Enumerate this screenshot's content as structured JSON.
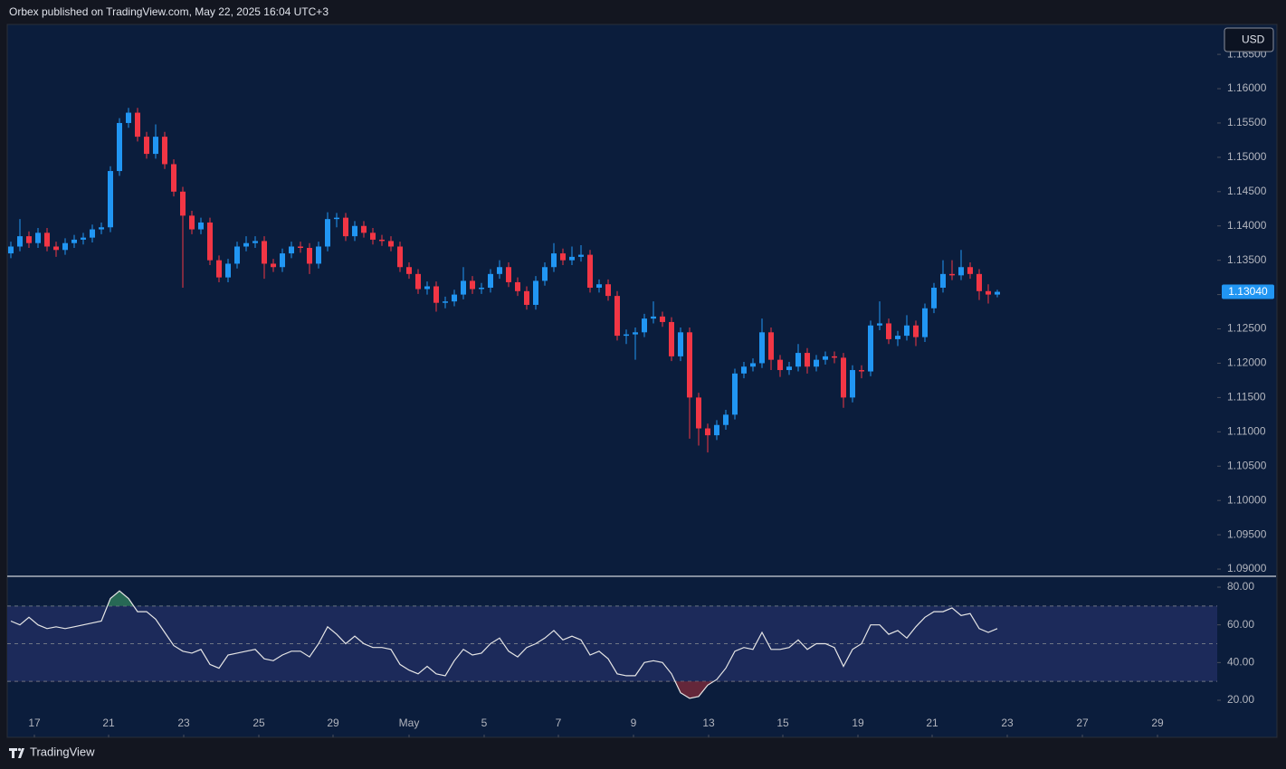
{
  "header": {
    "text": "Orbex published on TradingView.com, May 22, 2025 16:04 UTC+3"
  },
  "footer": {
    "brand": "TradingView"
  },
  "currency_button": {
    "label": "USD"
  },
  "chart_data": [
    {
      "type": "candlestick",
      "up_color": "#2196f3",
      "down_color": "#f23645",
      "xlim": [
        -0.4,
        133.3
      ],
      "ylim": [
        1.08895,
        1.16923
      ],
      "yticks": [
        {
          "value": 1.09,
          "label": "1.09000"
        },
        {
          "value": 1.095,
          "label": "1.09500"
        },
        {
          "value": 1.1,
          "label": "1.10000"
        },
        {
          "value": 1.105,
          "label": "1.10500"
        },
        {
          "value": 1.11,
          "label": "1.11000"
        },
        {
          "value": 1.115,
          "label": "1.11500"
        },
        {
          "value": 1.12,
          "label": "1.12000"
        },
        {
          "value": 1.125,
          "label": "1.12500"
        },
        {
          "value": 1.13,
          "label": "1.13000"
        },
        {
          "value": 1.135,
          "label": "1.13500"
        },
        {
          "value": 1.14,
          "label": "1.14000"
        },
        {
          "value": 1.145,
          "label": "1.14500"
        },
        {
          "value": 1.15,
          "label": "1.15000"
        },
        {
          "value": 1.155,
          "label": "1.15500"
        },
        {
          "value": 1.16,
          "label": "1.16000"
        },
        {
          "value": 1.165,
          "label": "1.16500"
        }
      ],
      "grid": false,
      "last_price": {
        "value": 1.1304,
        "label": "1.13040"
      },
      "ohlc": [
        [
          1.136,
          1.1377,
          1.1353,
          1.137
        ],
        [
          1.137,
          1.141,
          1.1363,
          1.1385
        ],
        [
          1.1385,
          1.1392,
          1.1368,
          1.1375
        ],
        [
          1.1375,
          1.1397,
          1.1368,
          1.139
        ],
        [
          1.139,
          1.1397,
          1.1363,
          1.137
        ],
        [
          1.137,
          1.1377,
          1.1355,
          1.1365
        ],
        [
          1.1365,
          1.1382,
          1.1358,
          1.1375
        ],
        [
          1.1375,
          1.1387,
          1.1368,
          1.138
        ],
        [
          1.138,
          1.139,
          1.1373,
          1.1383
        ],
        [
          1.1383,
          1.1402,
          1.1376,
          1.1395
        ],
        [
          1.1395,
          1.1405,
          1.1388,
          1.1398
        ],
        [
          1.1398,
          1.1487,
          1.1391,
          1.148
        ],
        [
          1.148,
          1.1557,
          1.1473,
          1.155
        ],
        [
          1.155,
          1.1572,
          1.1543,
          1.1565
        ],
        [
          1.1565,
          1.1572,
          1.1523,
          1.153
        ],
        [
          1.153,
          1.1537,
          1.1498,
          1.1505
        ],
        [
          1.1505,
          1.1548,
          1.1498,
          1.153
        ],
        [
          1.153,
          1.1537,
          1.1483,
          1.149
        ],
        [
          1.149,
          1.1497,
          1.1443,
          1.145
        ],
        [
          1.145,
          1.1457,
          1.131,
          1.1415
        ],
        [
          1.1415,
          1.1422,
          1.1388,
          1.1395
        ],
        [
          1.1395,
          1.1412,
          1.1388,
          1.1405
        ],
        [
          1.1405,
          1.1412,
          1.1343,
          1.135
        ],
        [
          1.135,
          1.1357,
          1.1318,
          1.1325
        ],
        [
          1.1325,
          1.1352,
          1.1318,
          1.1345
        ],
        [
          1.1345,
          1.1377,
          1.1338,
          1.137
        ],
        [
          1.137,
          1.1385,
          1.1363,
          1.1375
        ],
        [
          1.1375,
          1.1385,
          1.1368,
          1.1378
        ],
        [
          1.1378,
          1.1385,
          1.1323,
          1.1345
        ],
        [
          1.1345,
          1.1352,
          1.1333,
          1.134
        ],
        [
          1.134,
          1.1367,
          1.1333,
          1.136
        ],
        [
          1.136,
          1.1377,
          1.1353,
          1.137
        ],
        [
          1.137,
          1.1377,
          1.1361,
          1.1368
        ],
        [
          1.1368,
          1.1375,
          1.133,
          1.1345
        ],
        [
          1.1345,
          1.1377,
          1.1338,
          1.137
        ],
        [
          1.137,
          1.142,
          1.1363,
          1.141
        ],
        [
          1.141,
          1.1419,
          1.1398,
          1.1412
        ],
        [
          1.1412,
          1.1419,
          1.1378,
          1.1385
        ],
        [
          1.1385,
          1.1407,
          1.1378,
          1.14
        ],
        [
          1.14,
          1.1407,
          1.1383,
          1.139
        ],
        [
          1.139,
          1.1397,
          1.1373,
          1.138
        ],
        [
          1.138,
          1.1387,
          1.1371,
          1.1378
        ],
        [
          1.1378,
          1.1385,
          1.1363,
          1.137
        ],
        [
          1.137,
          1.1377,
          1.1333,
          1.134
        ],
        [
          1.134,
          1.1347,
          1.1323,
          1.133
        ],
        [
          1.133,
          1.1337,
          1.1301,
          1.1308
        ],
        [
          1.1308,
          1.1319,
          1.13,
          1.1312
        ],
        [
          1.1312,
          1.1319,
          1.1275,
          1.1288
        ],
        [
          1.1288,
          1.1297,
          1.128,
          1.129
        ],
        [
          1.129,
          1.1307,
          1.1283,
          1.13
        ],
        [
          1.13,
          1.134,
          1.1293,
          1.132
        ],
        [
          1.132,
          1.1327,
          1.1301,
          1.1308
        ],
        [
          1.1308,
          1.1317,
          1.1301,
          1.131
        ],
        [
          1.131,
          1.1337,
          1.1303,
          1.133
        ],
        [
          1.133,
          1.135,
          1.1323,
          1.134
        ],
        [
          1.134,
          1.1347,
          1.1311,
          1.1318
        ],
        [
          1.1318,
          1.1325,
          1.1298,
          1.1305
        ],
        [
          1.1305,
          1.1312,
          1.1278,
          1.1285
        ],
        [
          1.1285,
          1.1327,
          1.1278,
          1.132
        ],
        [
          1.132,
          1.1347,
          1.1313,
          1.134
        ],
        [
          1.134,
          1.1375,
          1.1333,
          1.136
        ],
        [
          1.136,
          1.1367,
          1.1343,
          1.135
        ],
        [
          1.135,
          1.137,
          1.1343,
          1.1355
        ],
        [
          1.1355,
          1.1372,
          1.1348,
          1.1358
        ],
        [
          1.1358,
          1.1365,
          1.1303,
          1.131
        ],
        [
          1.131,
          1.1322,
          1.1303,
          1.1315
        ],
        [
          1.1315,
          1.1322,
          1.1291,
          1.1298
        ],
        [
          1.1298,
          1.1305,
          1.1233,
          1.124
        ],
        [
          1.124,
          1.1249,
          1.1228,
          1.1242
        ],
        [
          1.1242,
          1.1252,
          1.1205,
          1.1245
        ],
        [
          1.1245,
          1.1272,
          1.1238,
          1.1265
        ],
        [
          1.1265,
          1.129,
          1.1258,
          1.1268
        ],
        [
          1.1268,
          1.1275,
          1.1253,
          1.126
        ],
        [
          1.126,
          1.1267,
          1.1203,
          1.121
        ],
        [
          1.121,
          1.1252,
          1.1203,
          1.1245
        ],
        [
          1.1245,
          1.1252,
          1.109,
          1.115
        ],
        [
          1.115,
          1.1157,
          1.108,
          1.1105
        ],
        [
          1.1105,
          1.1112,
          1.107,
          1.1095
        ],
        [
          1.1095,
          1.1117,
          1.1088,
          1.111
        ],
        [
          1.111,
          1.1132,
          1.1103,
          1.1125
        ],
        [
          1.1125,
          1.1192,
          1.1118,
          1.1185
        ],
        [
          1.1185,
          1.1202,
          1.1178,
          1.1195
        ],
        [
          1.1195,
          1.1207,
          1.1188,
          1.12
        ],
        [
          1.12,
          1.1265,
          1.1193,
          1.1245
        ],
        [
          1.1245,
          1.1252,
          1.119,
          1.1205
        ],
        [
          1.1205,
          1.1212,
          1.118,
          1.119
        ],
        [
          1.119,
          1.1202,
          1.1183,
          1.1195
        ],
        [
          1.1195,
          1.1228,
          1.1188,
          1.1215
        ],
        [
          1.1215,
          1.1222,
          1.1185,
          1.1195
        ],
        [
          1.1195,
          1.1212,
          1.1188,
          1.1205
        ],
        [
          1.1205,
          1.1217,
          1.1198,
          1.121
        ],
        [
          1.121,
          1.1217,
          1.12,
          1.1208
        ],
        [
          1.1208,
          1.1215,
          1.1135,
          1.115
        ],
        [
          1.115,
          1.1197,
          1.1143,
          1.119
        ],
        [
          1.119,
          1.1197,
          1.1178,
          1.1188
        ],
        [
          1.1188,
          1.1262,
          1.1181,
          1.1255
        ],
        [
          1.1255,
          1.129,
          1.1248,
          1.1258
        ],
        [
          1.1258,
          1.1265,
          1.1228,
          1.1235
        ],
        [
          1.1235,
          1.1247,
          1.1225,
          1.124
        ],
        [
          1.124,
          1.127,
          1.1233,
          1.1255
        ],
        [
          1.1255,
          1.1262,
          1.1225,
          1.1238
        ],
        [
          1.1238,
          1.1287,
          1.1231,
          1.128
        ],
        [
          1.128,
          1.1317,
          1.1273,
          1.131
        ],
        [
          1.131,
          1.135,
          1.1303,
          1.133
        ],
        [
          1.133,
          1.135,
          1.1321,
          1.1328
        ],
        [
          1.1328,
          1.1365,
          1.1321,
          1.134
        ],
        [
          1.134,
          1.1347,
          1.1323,
          1.133
        ],
        [
          1.133,
          1.1337,
          1.1292,
          1.1305
        ],
        [
          1.1305,
          1.1315,
          1.1287,
          1.13
        ],
        [
          1.13,
          1.1307,
          1.1296,
          1.1304
        ]
      ]
    },
    {
      "type": "line",
      "color": "#e6e6e6",
      "band_color": "#1c2a5a",
      "overbought_color": "#2e7d5b",
      "oversold_color": "#7a2a3a",
      "xlim": [
        -0.4,
        133.3
      ],
      "ylim": [
        0.32,
        85.76
      ],
      "yticks": [
        {
          "value": 20,
          "label": "20.00"
        },
        {
          "value": 40,
          "label": "40.00"
        },
        {
          "value": 60,
          "label": "60.00"
        },
        {
          "value": 80,
          "label": "80.00"
        }
      ],
      "levels": [
        70,
        50,
        30
      ],
      "xticks": [
        {
          "value": 2.6,
          "label": "17"
        },
        {
          "value": 10.8,
          "label": "21"
        },
        {
          "value": 19.1,
          "label": "23"
        },
        {
          "value": 27.4,
          "label": "25"
        },
        {
          "value": 35.6,
          "label": "29"
        },
        {
          "value": 44,
          "label": "May"
        },
        {
          "value": 52.3,
          "label": "5"
        },
        {
          "value": 60.5,
          "label": "7"
        },
        {
          "value": 68.8,
          "label": "9"
        },
        {
          "value": 77.1,
          "label": "13"
        },
        {
          "value": 85.3,
          "label": "15"
        },
        {
          "value": 93.6,
          "label": "19"
        },
        {
          "value": 101.8,
          "label": "21"
        },
        {
          "value": 110.1,
          "label": "23"
        },
        {
          "value": 118.4,
          "label": "27"
        },
        {
          "value": 126.7,
          "label": "29"
        }
      ],
      "values": [
        62,
        60,
        64,
        60,
        58,
        59,
        58,
        59,
        60,
        61,
        62,
        74,
        78,
        74,
        67,
        67,
        63,
        56,
        49,
        46,
        45,
        47,
        39,
        37,
        44,
        45,
        46,
        47,
        42,
        41,
        44,
        46,
        46,
        43,
        50,
        59,
        55,
        50,
        54,
        50,
        48,
        48,
        47,
        39,
        36,
        34,
        38,
        34,
        33,
        41,
        47,
        44,
        45,
        50,
        53,
        46,
        43,
        48,
        50,
        53,
        57,
        52,
        54,
        52,
        44,
        46,
        42,
        34,
        33,
        33,
        40,
        41,
        40,
        34,
        24,
        21,
        22,
        28,
        31,
        37,
        46,
        48,
        47,
        56,
        47,
        47,
        48,
        52,
        47,
        50,
        50,
        48,
        38,
        47,
        50,
        60,
        60,
        55,
        57,
        53,
        59,
        64,
        67,
        67,
        69,
        65,
        66,
        58,
        56,
        58
      ]
    }
  ]
}
